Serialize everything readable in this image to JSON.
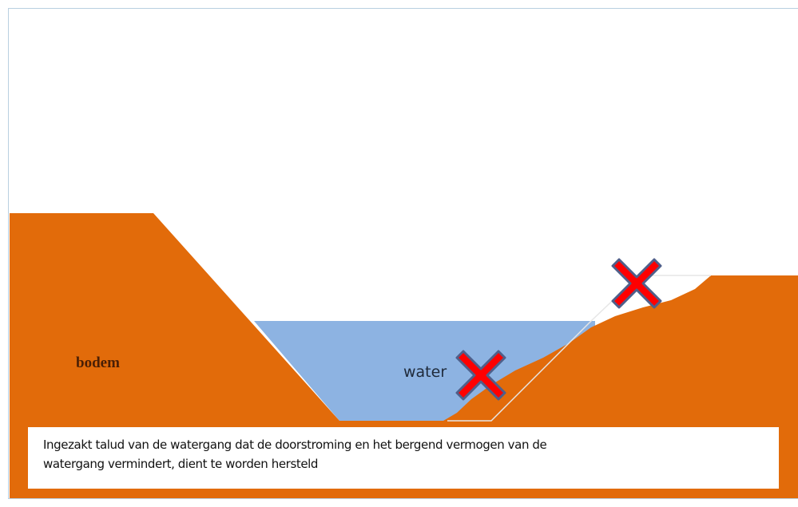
{
  "labels": {
    "soil": "bodem",
    "water": "water"
  },
  "caption": {
    "lines": [
      "Ingezakt talud van de watergang dat de doorstroming en het bergend vermogen van de",
      "watergang vermindert, dient te worden hersteld"
    ]
  }
}
